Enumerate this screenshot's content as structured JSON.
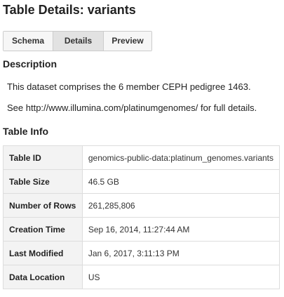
{
  "page": {
    "title": "Table Details: variants"
  },
  "tabs": [
    {
      "label": "Schema",
      "active": false
    },
    {
      "label": "Details",
      "active": true
    },
    {
      "label": "Preview",
      "active": false
    }
  ],
  "description": {
    "heading": "Description",
    "lines": [
      "This dataset comprises the 6 member CEPH pedigree 1463.",
      "See http://www.illumina.com/platinumgenomes/ for full details."
    ]
  },
  "table_info": {
    "heading": "Table Info",
    "rows": [
      {
        "label": "Table ID",
        "value": "genomics-public-data:platinum_genomes.variants"
      },
      {
        "label": "Table Size",
        "value": "46.5 GB"
      },
      {
        "label": "Number of Rows",
        "value": "261,285,806"
      },
      {
        "label": "Creation Time",
        "value": "Sep 16, 2014, 11:27:44 AM"
      },
      {
        "label": "Last Modified",
        "value": "Jan 6, 2017, 3:11:13 PM"
      },
      {
        "label": "Data Location",
        "value": "US"
      }
    ]
  }
}
